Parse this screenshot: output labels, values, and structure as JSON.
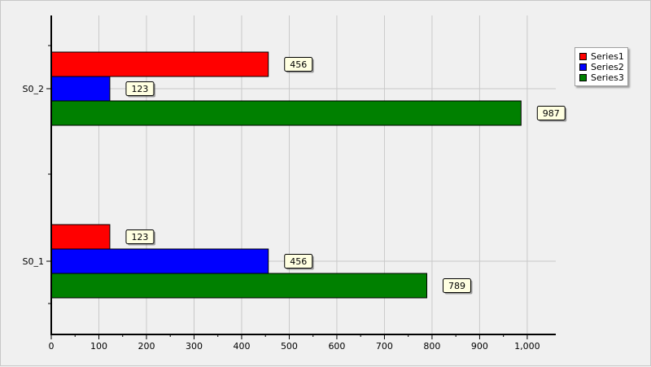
{
  "chart_data": {
    "type": "bar",
    "orientation": "horizontal",
    "categories": [
      "S0_1",
      "S0_2"
    ],
    "series": [
      {
        "name": "Series1",
        "color": "#ff0000",
        "values": [
          123,
          456
        ]
      },
      {
        "name": "Series2",
        "color": "#0000ff",
        "values": [
          456,
          123
        ]
      },
      {
        "name": "Series3",
        "color": "#008000",
        "values": [
          789,
          987
        ]
      }
    ],
    "xlim": [
      0,
      1060
    ],
    "x_ticks": [
      0,
      100,
      200,
      300,
      400,
      500,
      600,
      700,
      800,
      900,
      1000
    ],
    "x_tick_labels": [
      "0",
      "100",
      "200",
      "300",
      "400",
      "500",
      "600",
      "700",
      "800",
      "900",
      "1,000"
    ],
    "data_labels": true,
    "grid": true,
    "legend_position": "top-right",
    "title": "",
    "xlabel": "",
    "ylabel": ""
  }
}
